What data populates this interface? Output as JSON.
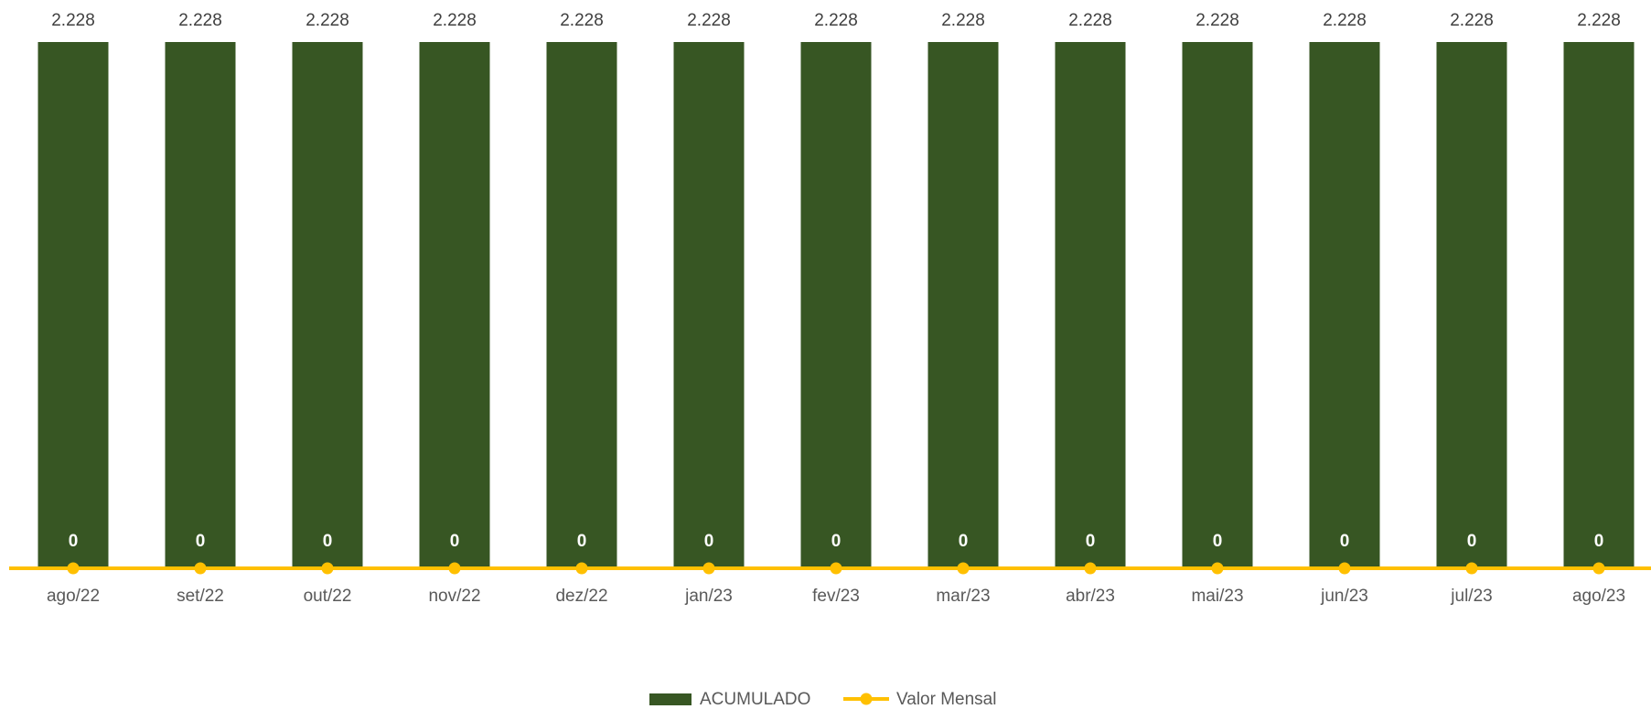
{
  "chart_data": {
    "type": "bar",
    "categories": [
      "ago/22",
      "set/22",
      "out/22",
      "nov/22",
      "dez/22",
      "jan/23",
      "fev/23",
      "mar/23",
      "abr/23",
      "mai/23",
      "jun/23",
      "jul/23",
      "ago/23"
    ],
    "series": [
      {
        "name": "ACUMULADO",
        "kind": "bar",
        "color": "#375623",
        "values": [
          2228,
          2228,
          2228,
          2228,
          2228,
          2228,
          2228,
          2228,
          2228,
          2228,
          2228,
          2228,
          2228
        ],
        "labels": [
          "2.228",
          "2.228",
          "2.228",
          "2.228",
          "2.228",
          "2.228",
          "2.228",
          "2.228",
          "2.228",
          "2.228",
          "2.228",
          "2.228",
          "2.228"
        ]
      },
      {
        "name": "Valor Mensal",
        "kind": "line",
        "color": "#FFC000",
        "values": [
          0,
          0,
          0,
          0,
          0,
          0,
          0,
          0,
          0,
          0,
          0,
          0,
          0
        ],
        "labels": [
          "0",
          "0",
          "0",
          "0",
          "0",
          "0",
          "0",
          "0",
          "0",
          "0",
          "0",
          "0",
          "0"
        ]
      }
    ],
    "title": "",
    "xlabel": "",
    "ylabel": "",
    "ylim": [
      0,
      2228
    ],
    "grid": false,
    "legend": "bottom"
  }
}
